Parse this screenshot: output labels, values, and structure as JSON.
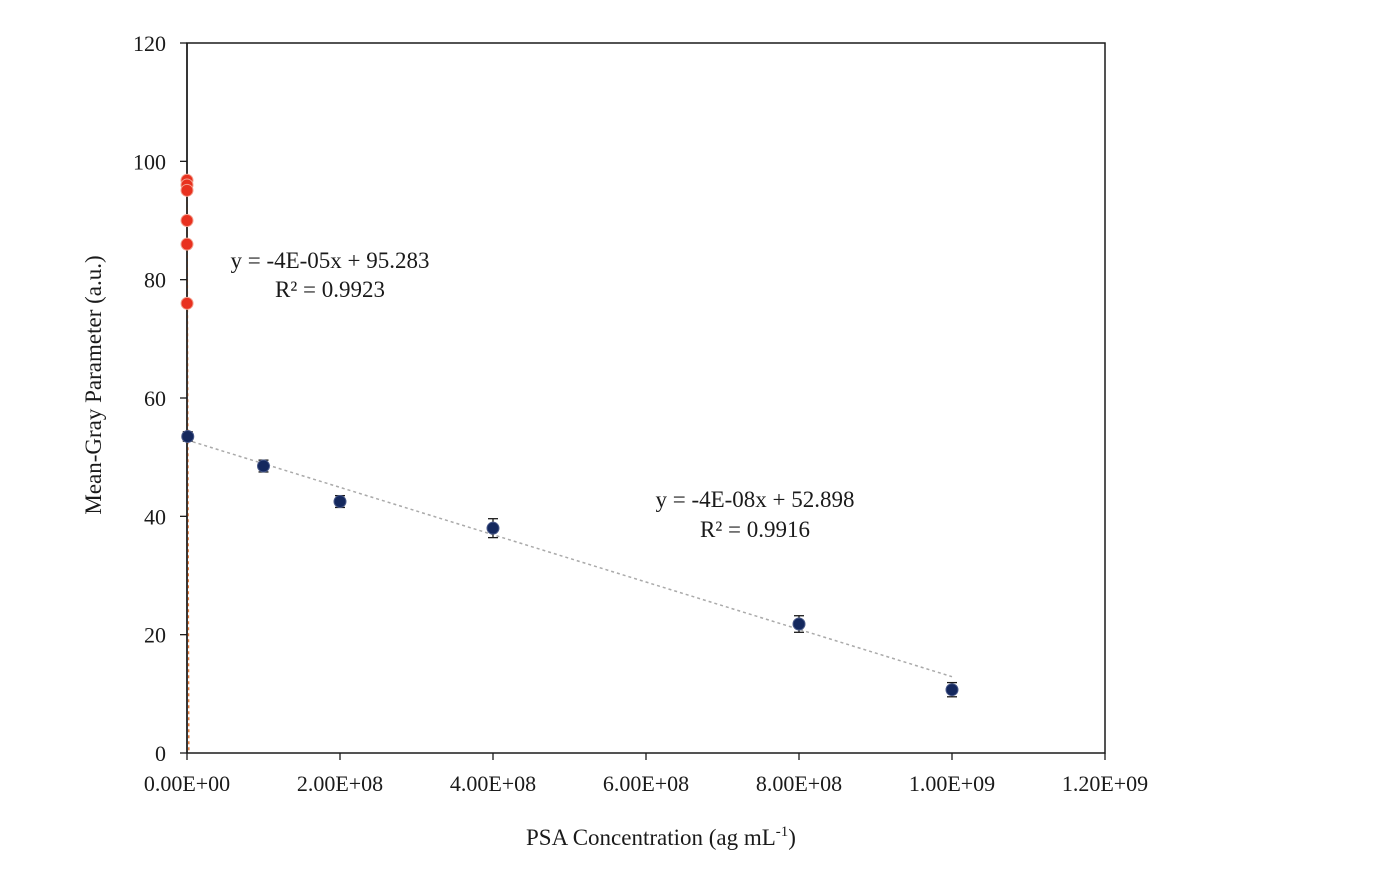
{
  "chart_data": {
    "type": "scatter",
    "title": "",
    "xlabel_main": "PSA Concentration (ag mL",
    "xlabel_sup": "-1",
    "xlabel_tail": ")",
    "ylabel": "Mean-Gray Parameter (a.u.)",
    "xlim": [
      0,
      1200000000
    ],
    "ylim": [
      0,
      120
    ],
    "x_ticks": [
      0,
      200000000,
      400000000,
      600000000,
      800000000,
      1000000000,
      1200000000
    ],
    "x_tick_labels": [
      "0.00E+00",
      "2.00E+08",
      "4.00E+08",
      "6.00E+08",
      "8.00E+08",
      "1.00E+09",
      "1.20E+09"
    ],
    "y_ticks": [
      0,
      20,
      40,
      60,
      80,
      100,
      120
    ],
    "y_tick_labels": [
      "0",
      "20",
      "40",
      "60",
      "80",
      "100",
      "120"
    ],
    "grid": false,
    "series": [
      {
        "color": "#e8311f",
        "marker": "circle",
        "points": [
          {
            "x": 0,
            "y": 96.8
          },
          {
            "x": 10,
            "y": 96.0
          },
          {
            "x": 100,
            "y": 95.1
          },
          {
            "x": 1000,
            "y": 90.0
          },
          {
            "x": 10000,
            "y": 86.0
          },
          {
            "x": 100000,
            "y": 76.0
          }
        ],
        "trendline": {
          "slope": -4e-05,
          "intercept": 95.283,
          "color": "#e07a3c"
        },
        "equation": "y = -4E-05x + 95.283",
        "r2": "R² = 0.9923"
      },
      {
        "color": "#14285e",
        "marker": "circle",
        "points": [
          {
            "x": 1000000,
            "y": 53.5,
            "err": 0.8
          },
          {
            "x": 100000000,
            "y": 48.5,
            "err": 1.0
          },
          {
            "x": 200000000,
            "y": 42.5,
            "err": 1.0
          },
          {
            "x": 400000000,
            "y": 38.0,
            "err": 1.6
          },
          {
            "x": 800000000,
            "y": 21.8,
            "err": 1.4
          },
          {
            "x": 1000000000,
            "y": 10.7,
            "err": 1.2
          }
        ],
        "trendline": {
          "slope": -4e-08,
          "intercept": 52.898,
          "color": "#aaaaaa"
        },
        "equation": "y = -4E-08x + 52.898",
        "r2": "R² = 0.9916"
      }
    ]
  }
}
